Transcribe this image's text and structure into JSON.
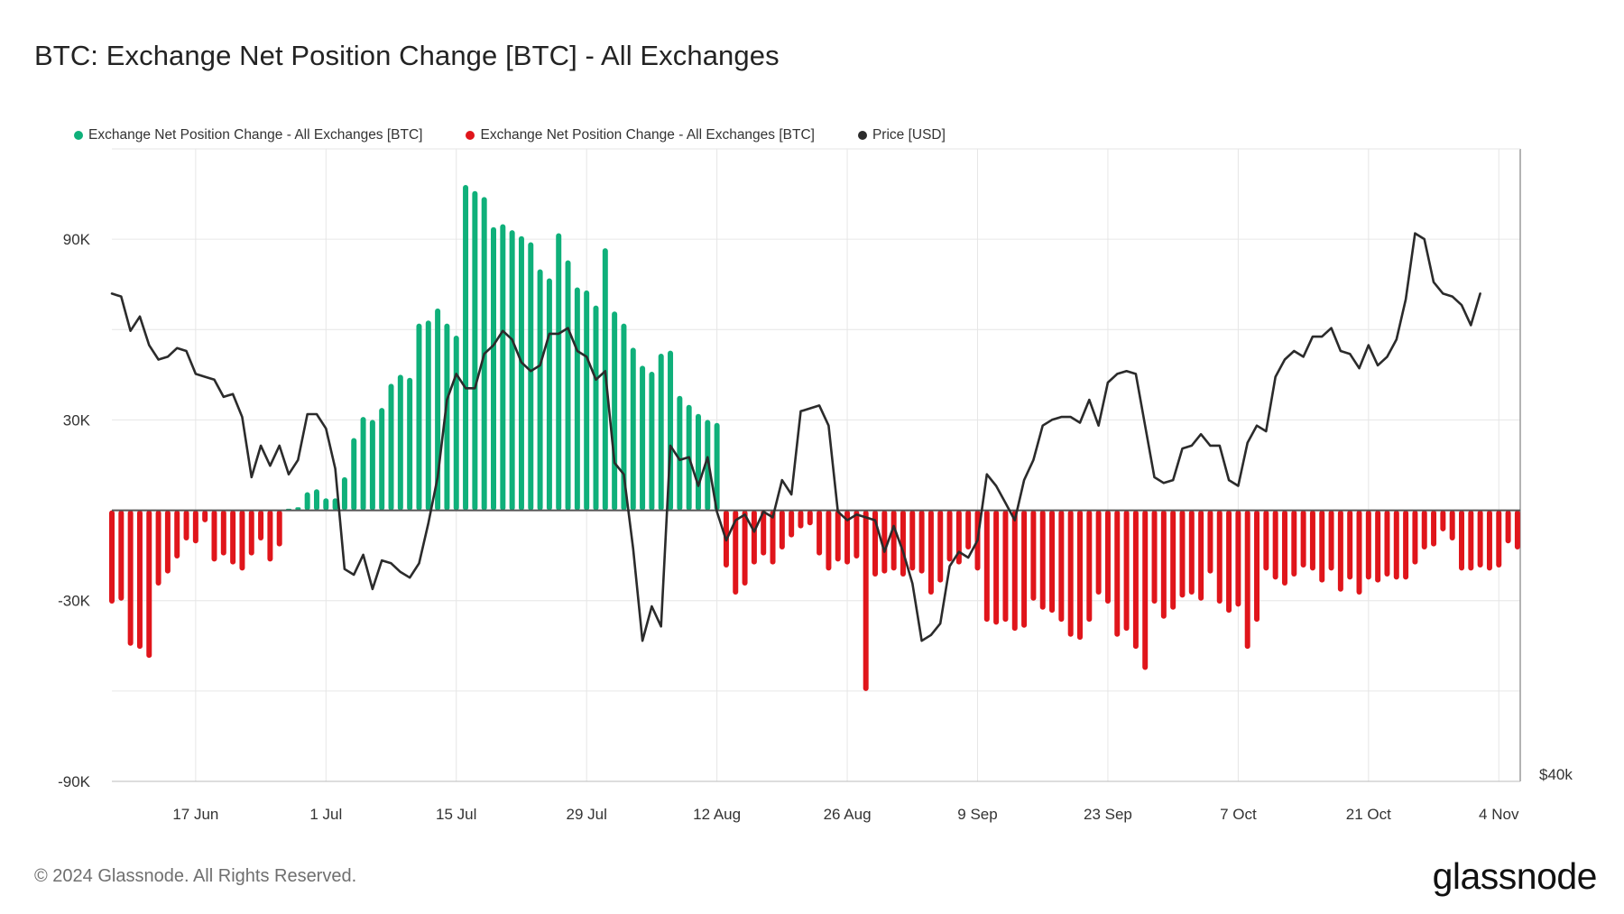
{
  "title": "BTC: Exchange Net Position Change [BTC] - All Exchanges",
  "legend": [
    {
      "label": "Exchange Net Position Change - All Exchanges [BTC]",
      "color": "#0fb07a"
    },
    {
      "label": "Exchange Net Position Change - All Exchanges [BTC]",
      "color": "#e0151b"
    },
    {
      "label": "Price [USD]",
      "color": "#2b2b2b"
    }
  ],
  "footer": "© 2024 Glassnode. All Rights Reserved.",
  "logo": "glassnode",
  "chart_data": {
    "type": "bar+line",
    "title": "BTC: Exchange Net Position Change [BTC] - All Exchanges",
    "colors": {
      "positive": "#0fb07a",
      "negative": "#e0151b",
      "price": "#2b2b2b",
      "grid": "#e6e6e6",
      "zero": "#555555"
    },
    "start_date": "2024-06-08",
    "x_tick_labels": [
      {
        "label": "17 Jun",
        "index": 9
      },
      {
        "label": "1 Jul",
        "index": 23
      },
      {
        "label": "15 Jul",
        "index": 37
      },
      {
        "label": "29 Jul",
        "index": 51
      },
      {
        "label": "12 Aug",
        "index": 65
      },
      {
        "label": "26 Aug",
        "index": 79
      },
      {
        "label": "9 Sep",
        "index": 93
      },
      {
        "label": "23 Sep",
        "index": 107
      },
      {
        "label": "7 Oct",
        "index": 121
      },
      {
        "label": "21 Oct",
        "index": 135
      },
      {
        "label": "4 Nov",
        "index": 149
      }
    ],
    "y_left": {
      "ticks": [
        90000,
        30000,
        -30000,
        -90000
      ],
      "tick_labels": [
        "90K",
        "30K",
        "-30K",
        "-90K"
      ],
      "range": [
        -90000,
        120000
      ]
    },
    "y_right": {
      "tick_labels": [
        "$40k"
      ],
      "price_range": [
        53500,
        73500
      ]
    },
    "net_position_change": [
      -31000,
      -30000,
      -45000,
      -46000,
      -49000,
      -25000,
      -21000,
      -16000,
      -10000,
      -11000,
      -4000,
      -17000,
      -15000,
      -18000,
      -20000,
      -15000,
      -10000,
      -17000,
      -12000,
      500,
      1000,
      6000,
      7000,
      4000,
      4000,
      11000,
      24000,
      31000,
      30000,
      34000,
      42000,
      45000,
      44000,
      62000,
      63000,
      67000,
      62000,
      58000,
      108000,
      106000,
      104000,
      94000,
      95000,
      93000,
      91000,
      89000,
      80000,
      77000,
      92000,
      83000,
      74000,
      73000,
      68000,
      87000,
      66000,
      62000,
      54000,
      48000,
      46000,
      52000,
      53000,
      38000,
      35000,
      32000,
      30000,
      29000,
      -19000,
      -28000,
      -25000,
      -18000,
      -15000,
      -18000,
      -13000,
      -9000,
      -6000,
      -5000,
      -15000,
      -20000,
      -17000,
      -18000,
      -16000,
      -60000,
      -22000,
      -21000,
      -20000,
      -22000,
      -20000,
      -21000,
      -28000,
      -24000,
      -17000,
      -18000,
      -13000,
      -20000,
      -37000,
      -38000,
      -37000,
      -40000,
      -39000,
      -30000,
      -33000,
      -34000,
      -37000,
      -42000,
      -43000,
      -37000,
      -28000,
      -31000,
      -42000,
      -40000,
      -46000,
      -53000,
      -31000,
      -36000,
      -33000,
      -29000,
      -28000,
      -30000,
      -21000,
      -31000,
      -34000,
      -32000,
      -46000,
      -37000,
      -20000,
      -23000,
      -25000,
      -22000,
      -19000,
      -20000,
      -24000,
      -20000,
      -27000,
      -23000,
      -28000,
      -23000,
      -24000,
      -22000,
      -23000,
      -23000,
      -18000,
      -13000,
      -12000,
      -7000,
      -10000,
      -20000,
      -20000,
      -19000,
      -20000,
      -19000,
      -11000,
      -13000
    ],
    "price_usd": [
      70500,
      70400,
      69200,
      69700,
      68700,
      68200,
      68300,
      68600,
      68500,
      67700,
      67600,
      67500,
      66900,
      67000,
      66200,
      64100,
      65200,
      64500,
      65200,
      64200,
      64700,
      66300,
      66300,
      65800,
      64400,
      60900,
      60700,
      61400,
      60200,
      61200,
      61100,
      60800,
      60600,
      61100,
      62500,
      64100,
      66800,
      67700,
      67200,
      67200,
      68400,
      68700,
      69200,
      68900,
      68100,
      67800,
      68000,
      69100,
      69100,
      69300,
      68500,
      68300,
      67500,
      67800,
      64600,
      64200,
      61600,
      58400,
      59600,
      58900,
      65200,
      64700,
      64800,
      63800,
      64800,
      62900,
      61900,
      62600,
      62800,
      62200,
      62900,
      62700,
      64000,
      63500,
      66400,
      66500,
      66600,
      65900,
      62900,
      62600,
      62800,
      62700,
      62600,
      61500,
      62400,
      61500,
      60400,
      58400,
      58600,
      59000,
      61000,
      61500,
      61300,
      61900,
      64200,
      63800,
      63200,
      62600,
      64000,
      64700,
      65900,
      66100,
      66200,
      66200,
      66000,
      66800,
      65900,
      67400,
      67700,
      67800,
      67700,
      65900,
      64100,
      63900,
      64000,
      65100,
      65200,
      65600,
      65200,
      65200,
      64000,
      63800,
      65300,
      65900,
      65700,
      67600,
      68200,
      68500,
      68300,
      69000,
      69000,
      69300,
      68500,
      68400,
      67900,
      68700,
      68000,
      68300,
      68900,
      70300,
      72600,
      72400,
      70900,
      70500,
      70400,
      70100,
      69400,
      70500
    ]
  }
}
